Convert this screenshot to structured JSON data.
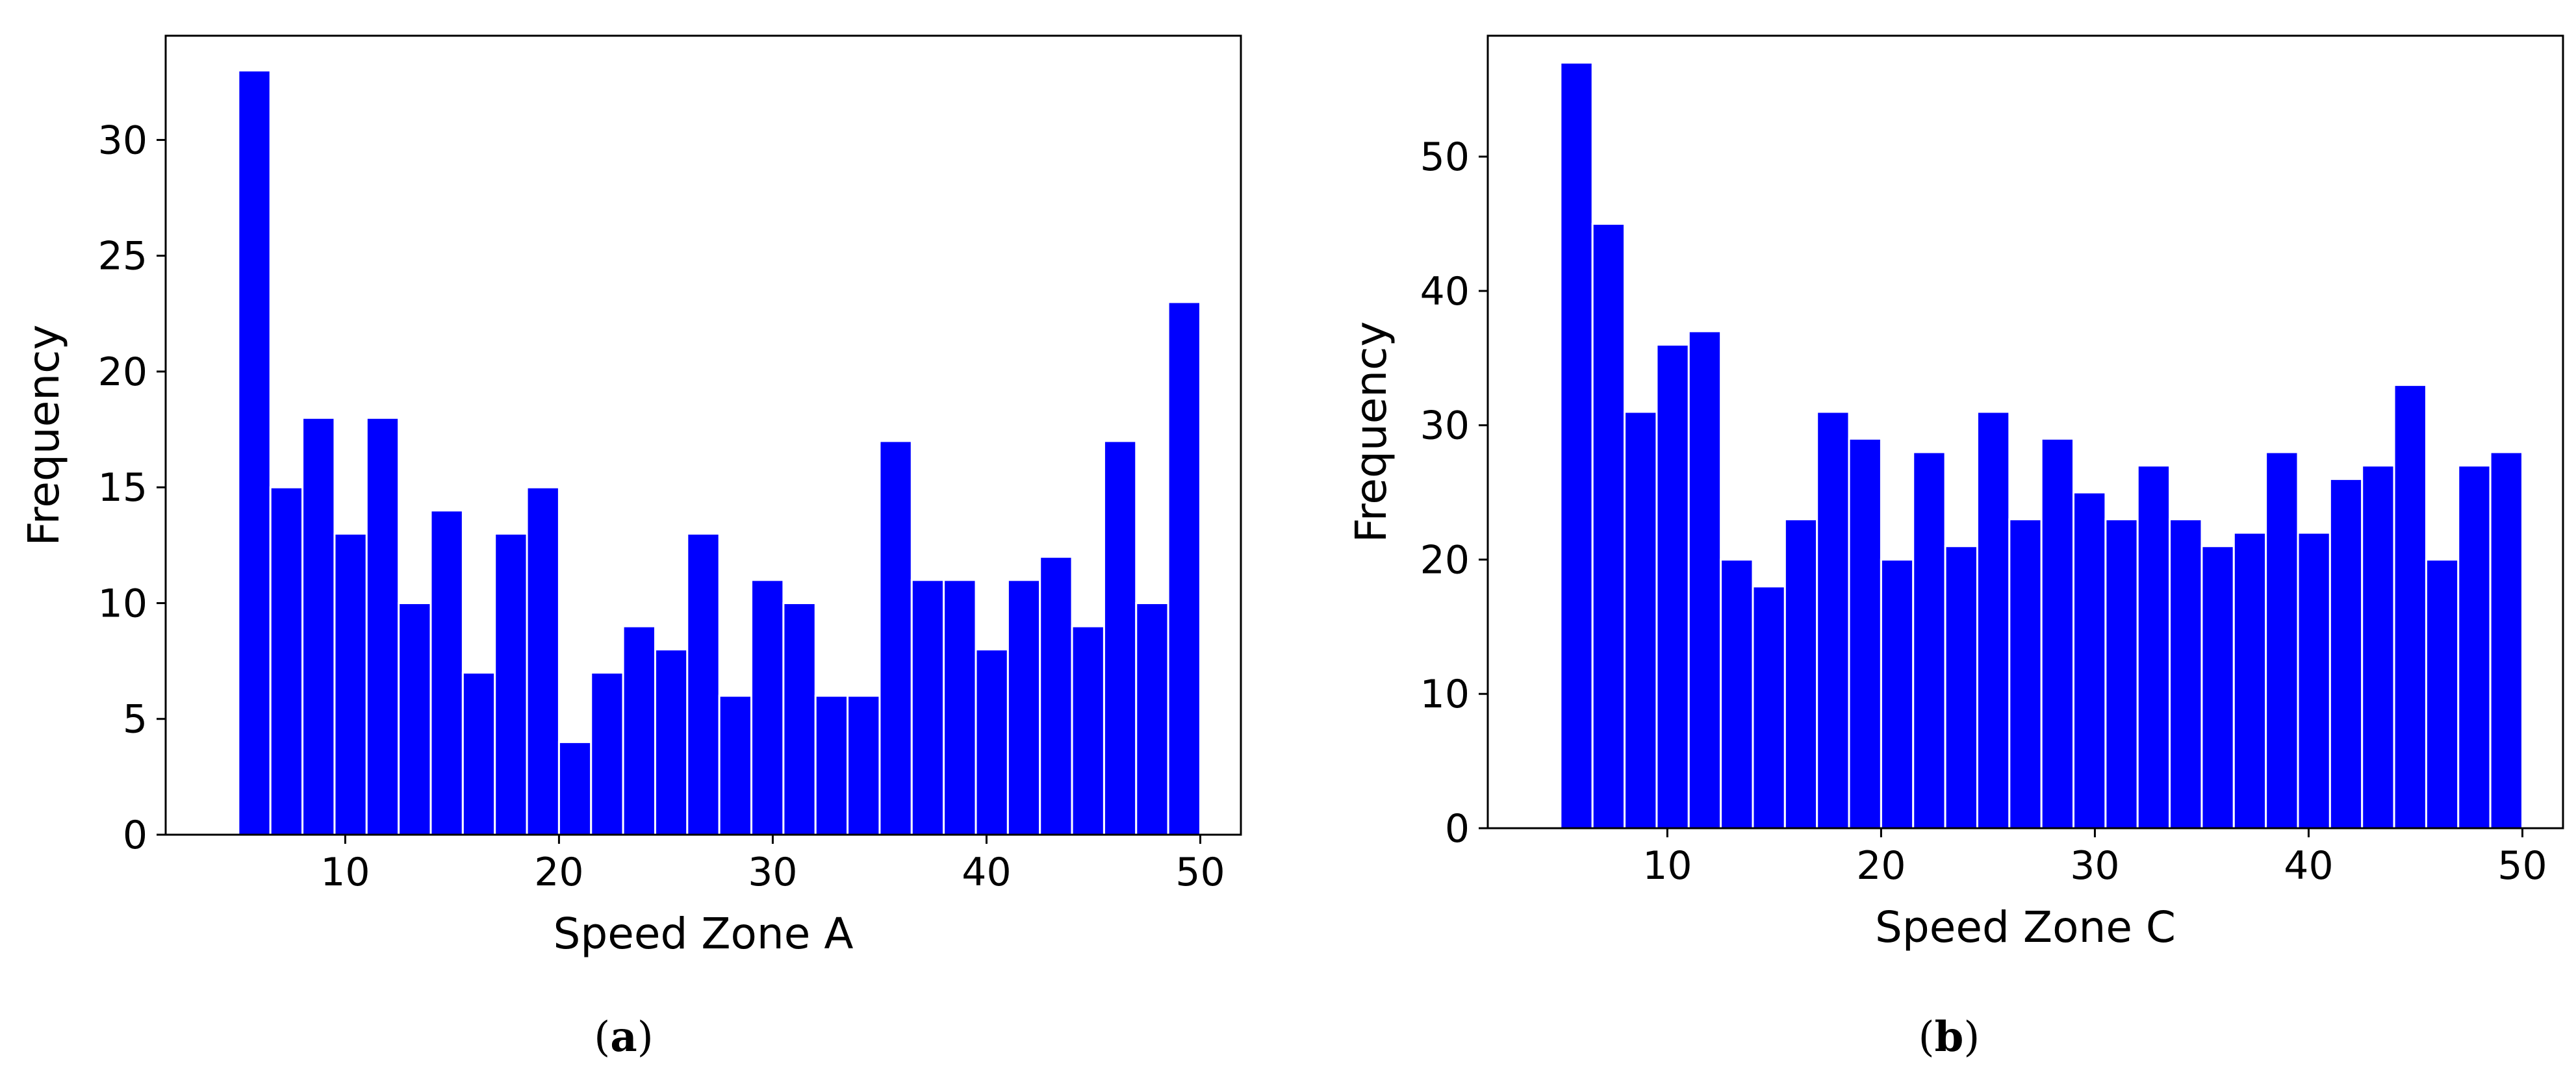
{
  "chart_data": [
    {
      "type": "bar",
      "xlabel": "Speed Zone A",
      "ylabel": "Frequency",
      "caption": {
        "open": "(",
        "letter": "a",
        "close": ")"
      },
      "xlim": [
        1.6,
        51.9
      ],
      "ylim": [
        0,
        34.5
      ],
      "xticks": [
        10,
        20,
        30,
        40,
        50
      ],
      "yticks": [
        0,
        5,
        10,
        15,
        20,
        25,
        30
      ],
      "bin_start": 5.0,
      "bin_width": 1.5,
      "values": [
        33,
        15,
        18,
        13,
        18,
        10,
        14,
        7,
        13,
        15,
        4,
        7,
        9,
        8,
        13,
        6,
        11,
        10,
        6,
        6,
        17,
        11,
        11,
        8,
        11,
        12,
        9,
        17,
        10,
        23
      ],
      "bar_color": "#0000ff",
      "grid": false
    },
    {
      "type": "bar",
      "xlabel": "Speed Zone C",
      "ylabel": "Frequency",
      "caption": {
        "open": "(",
        "letter": "b",
        "close": ")"
      },
      "xlim": [
        1.6,
        51.9
      ],
      "ylim": [
        0,
        59
      ],
      "xticks": [
        10,
        20,
        30,
        40,
        50
      ],
      "yticks": [
        0,
        10,
        20,
        30,
        40,
        50
      ],
      "bin_start": 5.0,
      "bin_width": 1.5,
      "values": [
        57,
        45,
        31,
        36,
        37,
        20,
        18,
        23,
        31,
        29,
        20,
        28,
        21,
        31,
        23,
        29,
        25,
        23,
        27,
        23,
        21,
        22,
        28,
        22,
        26,
        27,
        33,
        20,
        27,
        28
      ],
      "bar_color": "#0000ff",
      "grid": false
    }
  ]
}
